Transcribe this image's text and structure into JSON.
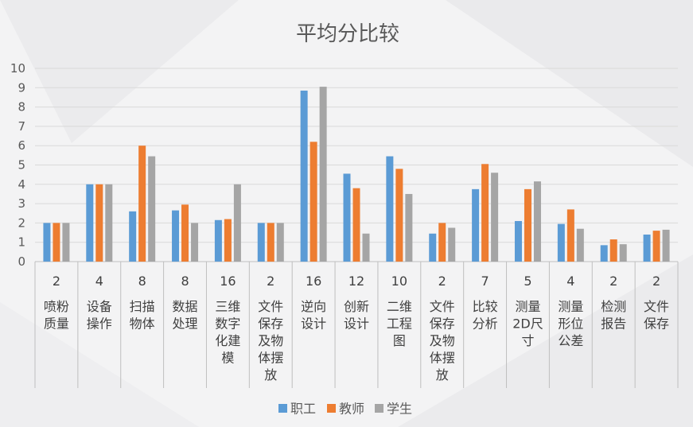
{
  "chart_data": {
    "type": "bar",
    "title": "平均分比较",
    "ylim": [
      0,
      10
    ],
    "yticks": [
      0,
      1,
      2,
      3,
      4,
      5,
      6,
      7,
      8,
      9,
      10
    ],
    "grid": true,
    "legend_position": "bottom",
    "categories": [
      {
        "count": "2",
        "label": [
          "喷粉",
          "质量"
        ]
      },
      {
        "count": "4",
        "label": [
          "设备",
          "操作"
        ]
      },
      {
        "count": "8",
        "label": [
          "扫描",
          "物体"
        ]
      },
      {
        "count": "8",
        "label": [
          "数据",
          "处理"
        ]
      },
      {
        "count": "16",
        "label": [
          "三维",
          "数字",
          "化建",
          "模"
        ]
      },
      {
        "count": "2",
        "label": [
          "文件",
          "保存",
          "及物",
          "体摆",
          "放"
        ]
      },
      {
        "count": "16",
        "label": [
          "逆向",
          "设计"
        ]
      },
      {
        "count": "12",
        "label": [
          "创新",
          "设计"
        ]
      },
      {
        "count": "10",
        "label": [
          "二维",
          "工程",
          "图"
        ]
      },
      {
        "count": "2",
        "label": [
          "文件",
          "保存",
          "及物",
          "体摆",
          "放"
        ]
      },
      {
        "count": "7",
        "label": [
          "比较",
          "分析"
        ]
      },
      {
        "count": "5",
        "label": [
          "测量",
          "2D尺",
          "寸"
        ]
      },
      {
        "count": "4",
        "label": [
          "测量",
          "形位",
          "公差"
        ]
      },
      {
        "count": "2",
        "label": [
          "检测",
          "报告"
        ]
      },
      {
        "count": "2",
        "label": [
          "文件",
          "保存"
        ]
      }
    ],
    "series": [
      {
        "name": "职工",
        "color": "#5b9bd5",
        "values": [
          2.0,
          4.0,
          2.6,
          2.65,
          2.15,
          2.0,
          8.85,
          4.55,
          5.45,
          1.45,
          3.75,
          2.1,
          1.95,
          0.85,
          1.4
        ]
      },
      {
        "name": "教师",
        "color": "#ed7d31",
        "values": [
          2.0,
          4.0,
          6.0,
          2.95,
          2.2,
          2.0,
          6.2,
          3.8,
          4.8,
          2.0,
          5.05,
          3.75,
          2.7,
          1.15,
          1.6
        ]
      },
      {
        "name": "学生",
        "color": "#a5a5a5",
        "values": [
          2.0,
          4.0,
          5.45,
          2.0,
          4.0,
          2.0,
          9.05,
          1.45,
          3.5,
          1.75,
          4.6,
          4.15,
          1.7,
          0.9,
          1.65
        ]
      }
    ]
  }
}
